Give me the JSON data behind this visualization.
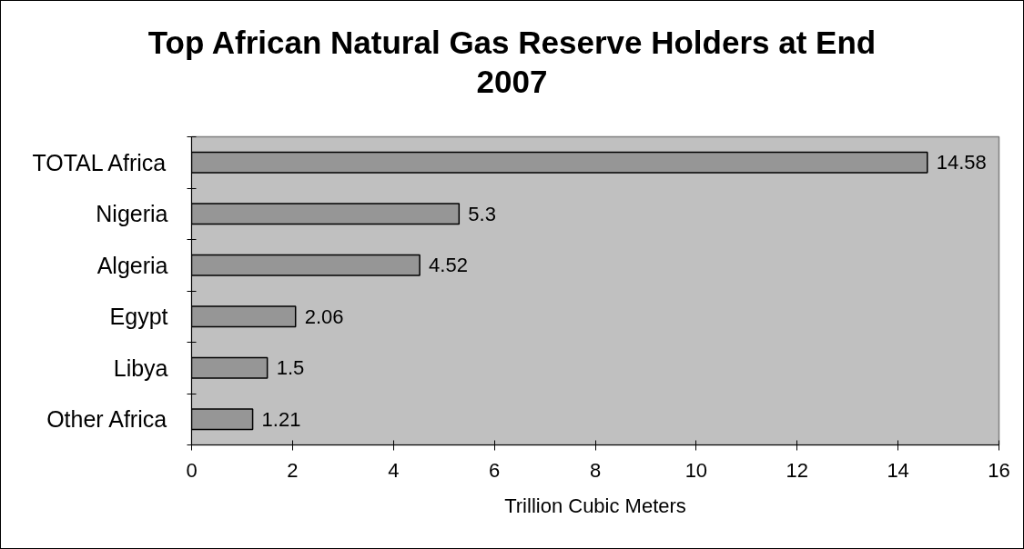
{
  "chart_data": {
    "type": "bar",
    "orientation": "horizontal",
    "title": "Top African Natural Gas Reserve Holders at End 2007",
    "xlabel": "Trillion Cubic Meters",
    "categories": [
      "TOTAL Africa",
      "Nigeria",
      "Algeria",
      "Egypt",
      "Libya",
      "Other Africa"
    ],
    "values": [
      14.58,
      5.3,
      4.52,
      2.06,
      1.5,
      1.21
    ],
    "color": "#969696",
    "xlim": [
      0,
      16
    ],
    "xticks": [
      0,
      2,
      4,
      6,
      8,
      10,
      12,
      14,
      16
    ],
    "data_labels": true,
    "grid": false
  }
}
